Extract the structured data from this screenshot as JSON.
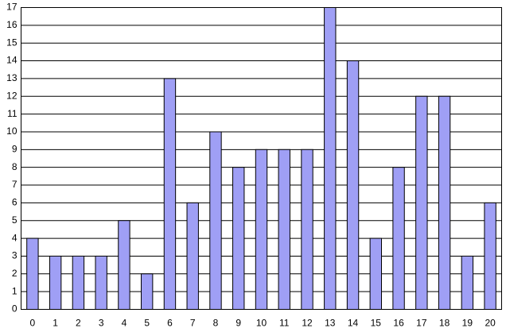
{
  "chart_data": {
    "type": "bar",
    "categories": [
      "0",
      "1",
      "2",
      "3",
      "4",
      "5",
      "6",
      "7",
      "8",
      "9",
      "10",
      "11",
      "12",
      "13",
      "14",
      "15",
      "16",
      "17",
      "18",
      "19",
      "20"
    ],
    "values": [
      4,
      3,
      3,
      3,
      5,
      2,
      13,
      6,
      10,
      8,
      9,
      9,
      9,
      17,
      14,
      4,
      8,
      12,
      12,
      3,
      6
    ],
    "color": "#9f9ff5",
    "ylim": [
      0,
      17
    ],
    "yticks": [
      0,
      1,
      2,
      3,
      4,
      5,
      6,
      7,
      8,
      9,
      10,
      11,
      12,
      13,
      14,
      15,
      16,
      17
    ],
    "grid": true
  }
}
